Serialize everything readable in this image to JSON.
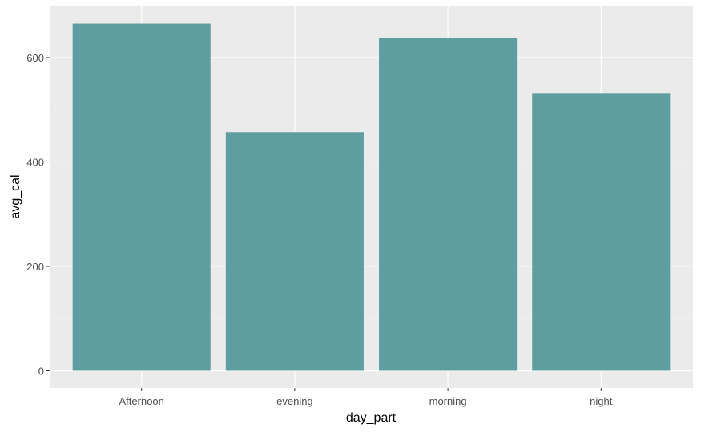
{
  "chart_data": {
    "type": "bar",
    "categories": [
      "Afternoon",
      "evening",
      "morning",
      "night"
    ],
    "values": [
      665,
      457,
      637,
      532
    ],
    "title": "",
    "xlabel": "day_part",
    "ylabel": "avg_cal",
    "ylim": [
      -33,
      698
    ],
    "yticks": [
      0,
      200,
      400,
      600
    ],
    "grid": true,
    "colors": {
      "bar": "#5f9ea0",
      "panel": "#ebebeb",
      "grid_major": "#ffffff",
      "grid_minor": "#f5f5f5",
      "tick_text": "#4d4d4d",
      "axis_title": "#000000"
    }
  }
}
